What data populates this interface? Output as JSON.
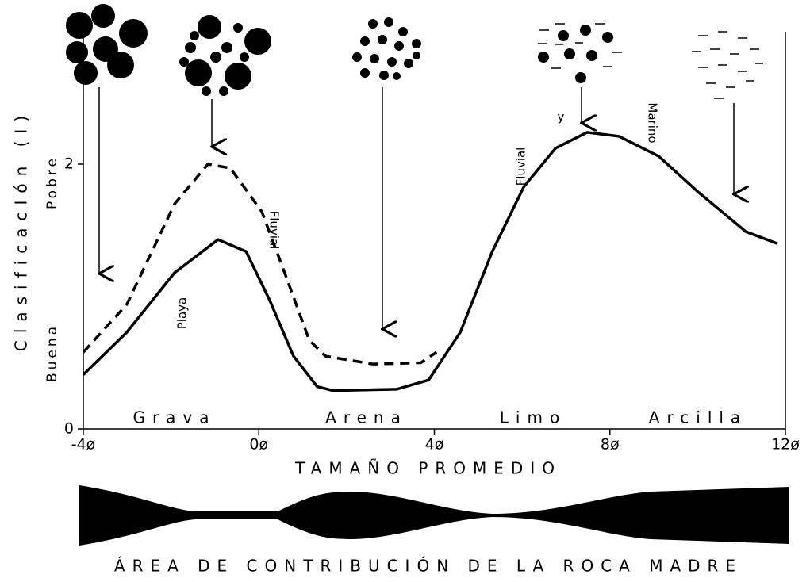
{
  "chart_data": {
    "type": "line",
    "y_axis_label": "ClasificacIón (I)",
    "y_axis_top_label": "Pobre",
    "y_axis_bottom_label": "Buena",
    "x_axis_label": "TAMAÑO PROMEDIO",
    "size_classes": [
      "Grava",
      "Arena",
      "Limo",
      "Arcilla"
    ],
    "annotations": [
      "Playa",
      "Fluvial",
      "Fluvial",
      "y",
      "Marino"
    ],
    "footer_label": "ÁREA DE CONTRIBUCIÓN DE LA ROCA MADRE",
    "xlim": [
      -4,
      12
    ],
    "xticks": [
      {
        "value": -4,
        "label": "-4ø"
      },
      {
        "value": 0,
        "label": "0ø"
      },
      {
        "value": 4,
        "label": "4ø"
      },
      {
        "value": 8,
        "label": "8ø"
      },
      {
        "value": 12,
        "label": "12ø"
      }
    ],
    "ylim": [
      0,
      3
    ],
    "yticks": [
      0,
      2
    ],
    "series": [
      {
        "style": "solid",
        "color": "#000000",
        "x": [
          -4,
          -3.01,
          -1.92,
          -0.93,
          -0.29,
          0.25,
          0.79,
          1.33,
          1.69,
          3.14,
          3.87,
          4.59,
          5.32,
          6.04,
          6.76,
          7.48,
          8.21,
          9.11,
          10.01,
          11.1,
          11.82
        ],
        "values": [
          0.41,
          0.73,
          1.18,
          1.43,
          1.34,
          0.97,
          0.55,
          0.32,
          0.29,
          0.3,
          0.37,
          0.73,
          1.34,
          1.83,
          2.12,
          2.24,
          2.21,
          2.06,
          1.79,
          1.49,
          1.4
        ]
      },
      {
        "style": "dashed",
        "color": "#000000",
        "x": [
          -4,
          -3.01,
          -1.92,
          -1.16,
          -0.65,
          0.07,
          0.61,
          1.15,
          1.52,
          2.6,
          3.69,
          4.05
        ],
        "values": [
          0.58,
          0.94,
          1.7,
          2.0,
          1.97,
          1.64,
          1.16,
          0.67,
          0.55,
          0.49,
          0.5,
          0.58
        ]
      }
    ]
  }
}
